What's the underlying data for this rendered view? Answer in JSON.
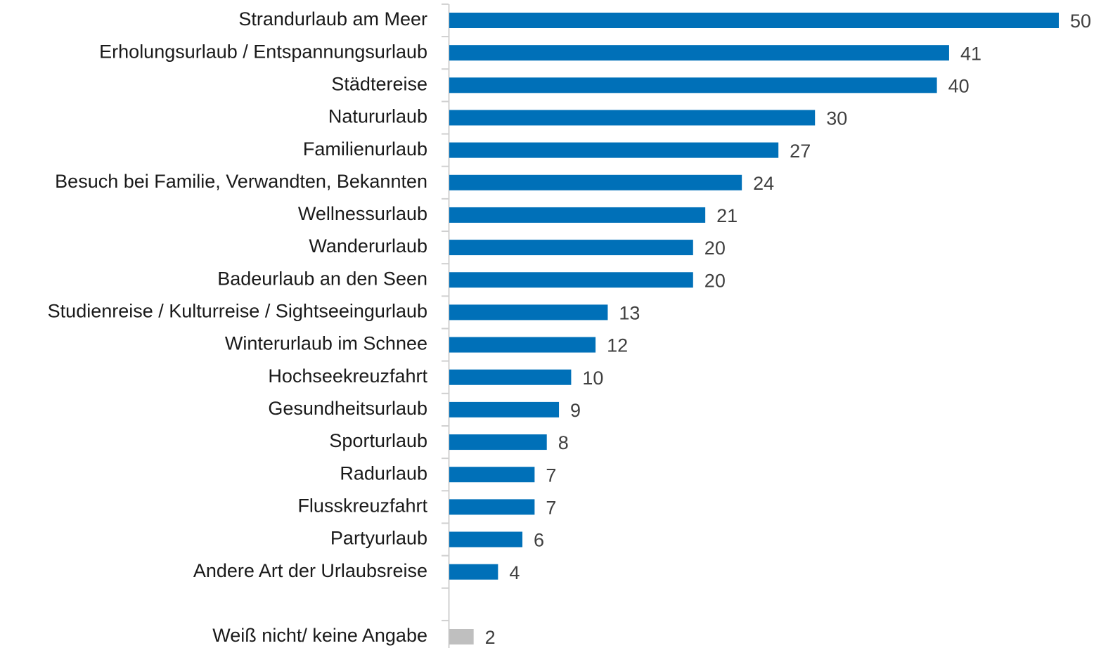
{
  "chart_data": {
    "type": "bar",
    "orientation": "horizontal",
    "categories": [
      "Strandurlaub am Meer",
      "Erholungsurlaub / Entspannungsurlaub",
      "Städtereise",
      "Natururlaub",
      "Familienurlaub",
      "Besuch bei Familie, Verwandten, Bekannten",
      "Wellnessurlaub",
      "Wanderurlaub",
      "Badeurlaub an den Seen",
      "Studienreise / Kulturreise / Sightseeingurlaub",
      "Winterurlaub im Schnee",
      "Hochseekreuzfahrt",
      "Gesundheitsurlaub",
      "Sporturlaub",
      "Radurlaub",
      "Flusskreuzfahrt",
      "Partyurlaub",
      "Andere Art der Urlaubsreise",
      null,
      "Weiß nicht/ keine Angabe"
    ],
    "values": [
      50,
      41,
      40,
      30,
      27,
      24,
      21,
      20,
      20,
      13,
      12,
      10,
      9,
      8,
      7,
      7,
      6,
      4,
      null,
      2
    ],
    "colors": [
      "#0070b8",
      "#0070b8",
      "#0070b8",
      "#0070b8",
      "#0070b8",
      "#0070b8",
      "#0070b8",
      "#0070b8",
      "#0070b8",
      "#0070b8",
      "#0070b8",
      "#0070b8",
      "#0070b8",
      "#0070b8",
      "#0070b8",
      "#0070b8",
      "#0070b8",
      "#0070b8",
      null,
      "#bfbfbf"
    ],
    "value_labels_shown": true
  }
}
